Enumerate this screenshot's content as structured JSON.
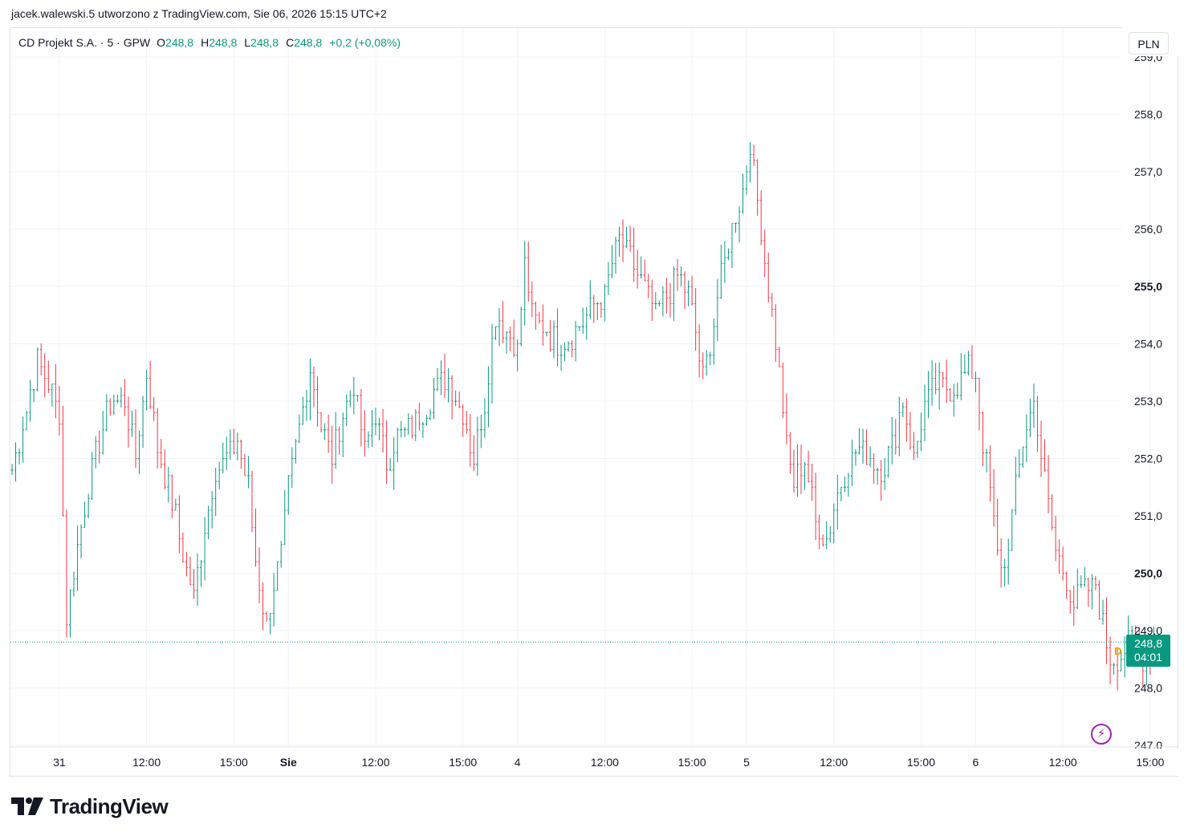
{
  "caption": "jacek.walewski.5 utworzono z TradingView.com, Sie 06, 2026 15:15 UTC+2",
  "legend": {
    "symbol": "CD Projekt S.A. · 5 · GPW",
    "open_label": "O",
    "open": "248,8",
    "high_label": "H",
    "high": "248,8",
    "low_label": "L",
    "low": "248,8",
    "close_label": "C",
    "close": "248,8",
    "change": "+0,2 (+0,08%)"
  },
  "currency": "PLN",
  "price_tag": {
    "price": "248,8",
    "countdown": "04:01"
  },
  "d_badge": "D",
  "flash_icon": "lightning-icon",
  "logo": {
    "text": "TradingView",
    "icon": "tv-logo-icon"
  },
  "colors": {
    "up": "#089981",
    "down": "#f23645",
    "grid": "#f0f3fa",
    "text": "#131722"
  },
  "chart_data": {
    "type": "ohlc-bar",
    "interval": "5",
    "y_ticks": [
      "247,0",
      "248,0",
      "249,0",
      "250,0",
      "251,0",
      "252,0",
      "253,0",
      "254,0",
      "255,0",
      "256,0",
      "257,0",
      "258,0",
      "259,0"
    ],
    "y_ticks_bold": [
      "250,0",
      "255,0"
    ],
    "ylim": [
      247,
      259
    ],
    "current_price": 248.8,
    "x_ticks": [
      {
        "label": "31",
        "bar": 13
      },
      {
        "label": "12:00",
        "bar": 37
      },
      {
        "label": "15:00",
        "bar": 61
      },
      {
        "label": "Sie",
        "bar": 76,
        "bold": true
      },
      {
        "label": "12:00",
        "bar": 100
      },
      {
        "label": "15:00",
        "bar": 124
      },
      {
        "label": "4",
        "bar": 139
      },
      {
        "label": "12:00",
        "bar": 163
      },
      {
        "label": "15:00",
        "bar": 187
      },
      {
        "label": "5",
        "bar": 202
      },
      {
        "label": "12:00",
        "bar": 226
      },
      {
        "label": "15:00",
        "bar": 250
      },
      {
        "label": "6",
        "bar": 265
      },
      {
        "label": "12:00",
        "bar": 289
      },
      {
        "label": "15:00",
        "bar": 313
      }
    ],
    "bar_count": 315,
    "anchors": [
      [
        0,
        251.8
      ],
      [
        3,
        252.6
      ],
      [
        7,
        253.7
      ],
      [
        10,
        253.3
      ],
      [
        13,
        252.8
      ],
      [
        15,
        249.2
      ],
      [
        18,
        250.5
      ],
      [
        21,
        251.5
      ],
      [
        24,
        252.3
      ],
      [
        27,
        253.0
      ],
      [
        31,
        253.0
      ],
      [
        34,
        252.0
      ],
      [
        37,
        253.5
      ],
      [
        40,
        252.2
      ],
      [
        43,
        251.5
      ],
      [
        45,
        251.0
      ],
      [
        47,
        250.3
      ],
      [
        50,
        249.6
      ],
      [
        53,
        250.8
      ],
      [
        56,
        251.8
      ],
      [
        59,
        252.0
      ],
      [
        62,
        252.3
      ],
      [
        65,
        251.5
      ],
      [
        67,
        250.2
      ],
      [
        70,
        249.1
      ],
      [
        72,
        249.8
      ],
      [
        74,
        250.3
      ],
      [
        76,
        251.5
      ],
      [
        79,
        252.5
      ],
      [
        82,
        253.6
      ],
      [
        85,
        252.6
      ],
      [
        88,
        252.0
      ],
      [
        91,
        252.8
      ],
      [
        94,
        253.3
      ],
      [
        97,
        252.1
      ],
      [
        100,
        252.8
      ],
      [
        103,
        251.9
      ],
      [
        106,
        252.4
      ],
      [
        109,
        252.5
      ],
      [
        113,
        252.8
      ],
      [
        116,
        253.2
      ],
      [
        120,
        253.4
      ],
      [
        124,
        252.8
      ],
      [
        127,
        252.0
      ],
      [
        130,
        253.0
      ],
      [
        133,
        254.5
      ],
      [
        136,
        254.2
      ],
      [
        139,
        253.9
      ],
      [
        141,
        255.4
      ],
      [
        143,
        254.5
      ],
      [
        146,
        254.3
      ],
      [
        150,
        254.0
      ],
      [
        155,
        254.2
      ],
      [
        159,
        254.6
      ],
      [
        163,
        254.8
      ],
      [
        165,
        255.4
      ],
      [
        167,
        255.8
      ],
      [
        170,
        255.5
      ],
      [
        174,
        255.0
      ],
      [
        177,
        254.5
      ],
      [
        180,
        254.8
      ],
      [
        183,
        255.2
      ],
      [
        186,
        254.9
      ],
      [
        190,
        253.4
      ],
      [
        192,
        254.0
      ],
      [
        195,
        255.2
      ],
      [
        198,
        256.0
      ],
      [
        201,
        256.7
      ],
      [
        203,
        257.5
      ],
      [
        205,
        256.5
      ],
      [
        208,
        255.0
      ],
      [
        211,
        253.5
      ],
      [
        213,
        252.2
      ],
      [
        215,
        251.6
      ],
      [
        218,
        252.0
      ],
      [
        221,
        250.9
      ],
      [
        224,
        250.6
      ],
      [
        227,
        251.4
      ],
      [
        230,
        251.9
      ],
      [
        233,
        252.2
      ],
      [
        236,
        252.0
      ],
      [
        239,
        251.8
      ],
      [
        242,
        252.2
      ],
      [
        245,
        253.0
      ],
      [
        248,
        252.0
      ],
      [
        251,
        252.9
      ],
      [
        254,
        253.3
      ],
      [
        257,
        253.2
      ],
      [
        260,
        253.3
      ],
      [
        263,
        253.6
      ],
      [
        265,
        253.5
      ],
      [
        267,
        252.3
      ],
      [
        269,
        251.4
      ],
      [
        271,
        250.3
      ],
      [
        273,
        250.1
      ],
      [
        276,
        251.5
      ],
      [
        279,
        252.6
      ],
      [
        281,
        253.0
      ],
      [
        283,
        252.1
      ],
      [
        285,
        251.2
      ],
      [
        287,
        250.4
      ],
      [
        289,
        250.1
      ],
      [
        292,
        249.5
      ],
      [
        295,
        249.7
      ],
      [
        298,
        249.8
      ],
      [
        300,
        249.1
      ],
      [
        302,
        248.5
      ],
      [
        305,
        248.6
      ],
      [
        308,
        248.8
      ],
      [
        311,
        248.5
      ],
      [
        314,
        248.8
      ]
    ]
  }
}
